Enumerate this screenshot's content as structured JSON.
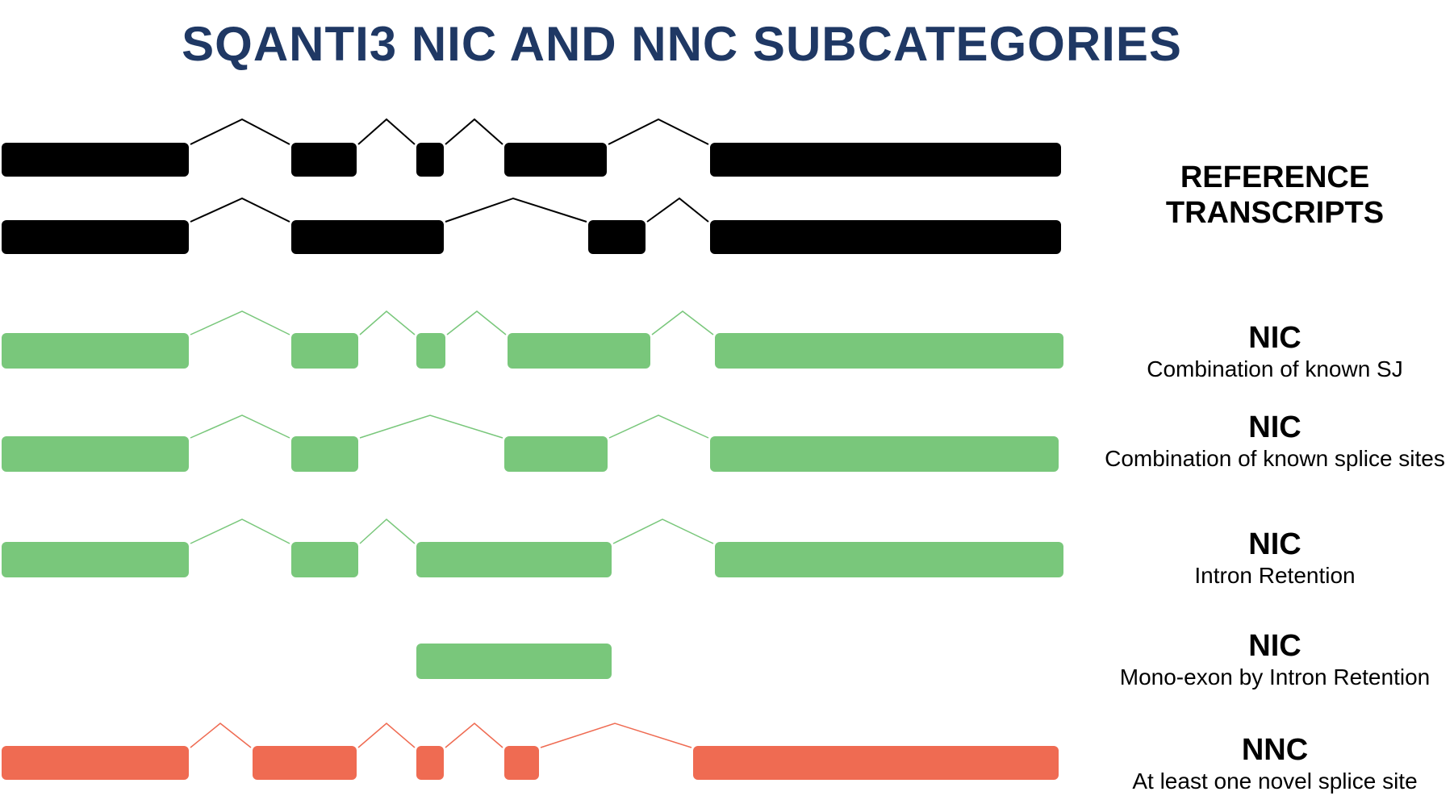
{
  "title": "SQANTI3 NIC AND NNC SUBCATEGORIES",
  "colors": {
    "reference": "#000000",
    "nic": "#79c77b",
    "nnc": "#ef6b52",
    "title": "#1f3864"
  },
  "labels": {
    "reference": "REFERENCE TRANSCRIPTS",
    "nic_sj": {
      "head": "NIC",
      "sub": "Combination of known SJ"
    },
    "nic_ss": {
      "head": "NIC",
      "sub": "Combination of known splice sites"
    },
    "nic_ir": {
      "head": "NIC",
      "sub": "Intron Retention"
    },
    "nic_mono": {
      "head": "NIC",
      "sub": "Mono-exon by Intron Retention"
    },
    "nnc": {
      "head": "NNC",
      "sub": "At least one novel splice site"
    }
  }
}
